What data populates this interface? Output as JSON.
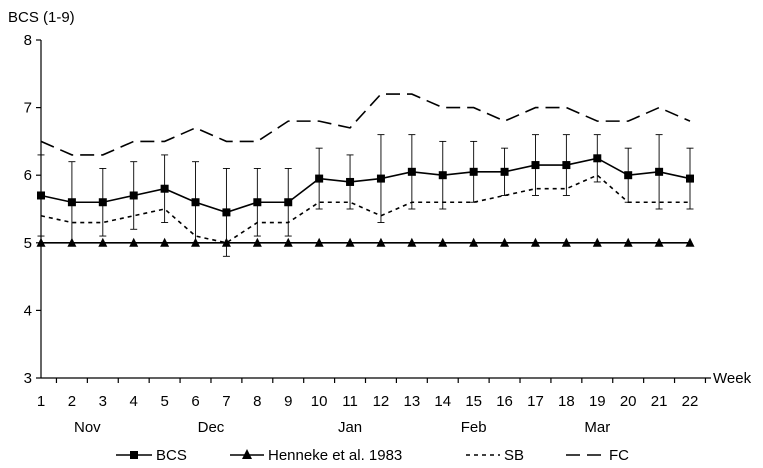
{
  "chart_data": {
    "type": "line",
    "ylabel": "BCS (1-9)",
    "xlabel": "Week",
    "x": [
      1,
      2,
      3,
      4,
      5,
      6,
      7,
      8,
      9,
      10,
      11,
      12,
      13,
      14,
      15,
      16,
      17,
      18,
      19,
      20,
      21,
      22
    ],
    "xticks": [
      "1",
      "2",
      "3",
      "4",
      "5",
      "6",
      "7",
      "8",
      "9",
      "10",
      "11",
      "12",
      "13",
      "14",
      "15",
      "16",
      "17",
      "18",
      "19",
      "20",
      "21",
      "22"
    ],
    "months": [
      {
        "label": "Nov",
        "x": 2.5
      },
      {
        "label": "Dec",
        "x": 6.5
      },
      {
        "label": "Jan",
        "x": 11
      },
      {
        "label": "Feb",
        "x": 15
      },
      {
        "label": "Mar",
        "x": 19
      }
    ],
    "ylim": [
      3,
      8
    ],
    "yticks": [
      "3",
      "4",
      "5",
      "6",
      "7",
      "8"
    ],
    "grid": false,
    "legend_position": "bottom",
    "series": [
      {
        "name": "BCS",
        "style": "solid",
        "marker": "square",
        "values": [
          5.7,
          5.6,
          5.6,
          5.7,
          5.8,
          5.6,
          5.45,
          5.6,
          5.6,
          5.95,
          5.9,
          5.95,
          6.05,
          6.0,
          6.05,
          6.05,
          6.15,
          6.15,
          6.25,
          6.0,
          6.05,
          5.95
        ],
        "error": [
          0.6,
          0.6,
          0.5,
          0.5,
          0.5,
          0.6,
          0.65,
          0.5,
          0.5,
          0.45,
          0.4,
          0.65,
          0.55,
          0.5,
          0.45,
          0.35,
          0.45,
          0.45,
          0.35,
          0.4,
          0.55,
          0.45
        ]
      },
      {
        "name": "Henneke et al. 1983",
        "style": "solid",
        "marker": "triangle",
        "values": [
          5,
          5,
          5,
          5,
          5,
          5,
          5,
          5,
          5,
          5,
          5,
          5,
          5,
          5,
          5,
          5,
          5,
          5,
          5,
          5,
          5,
          5
        ]
      },
      {
        "name": "SB",
        "style": "dotted",
        "marker": "none",
        "values": [
          5.4,
          5.3,
          5.3,
          5.4,
          5.5,
          5.1,
          5.0,
          5.3,
          5.3,
          5.6,
          5.6,
          5.4,
          5.6,
          5.6,
          5.6,
          5.7,
          5.8,
          5.8,
          6.0,
          5.6,
          5.6,
          5.6
        ]
      },
      {
        "name": "FC",
        "style": "dashed",
        "marker": "none",
        "values": [
          6.5,
          6.3,
          6.3,
          6.5,
          6.5,
          6.7,
          6.5,
          6.5,
          6.8,
          6.8,
          6.7,
          7.2,
          7.2,
          7.0,
          7.0,
          6.8,
          7.0,
          7.0,
          6.8,
          6.8,
          7.0,
          6.8
        ]
      }
    ]
  }
}
